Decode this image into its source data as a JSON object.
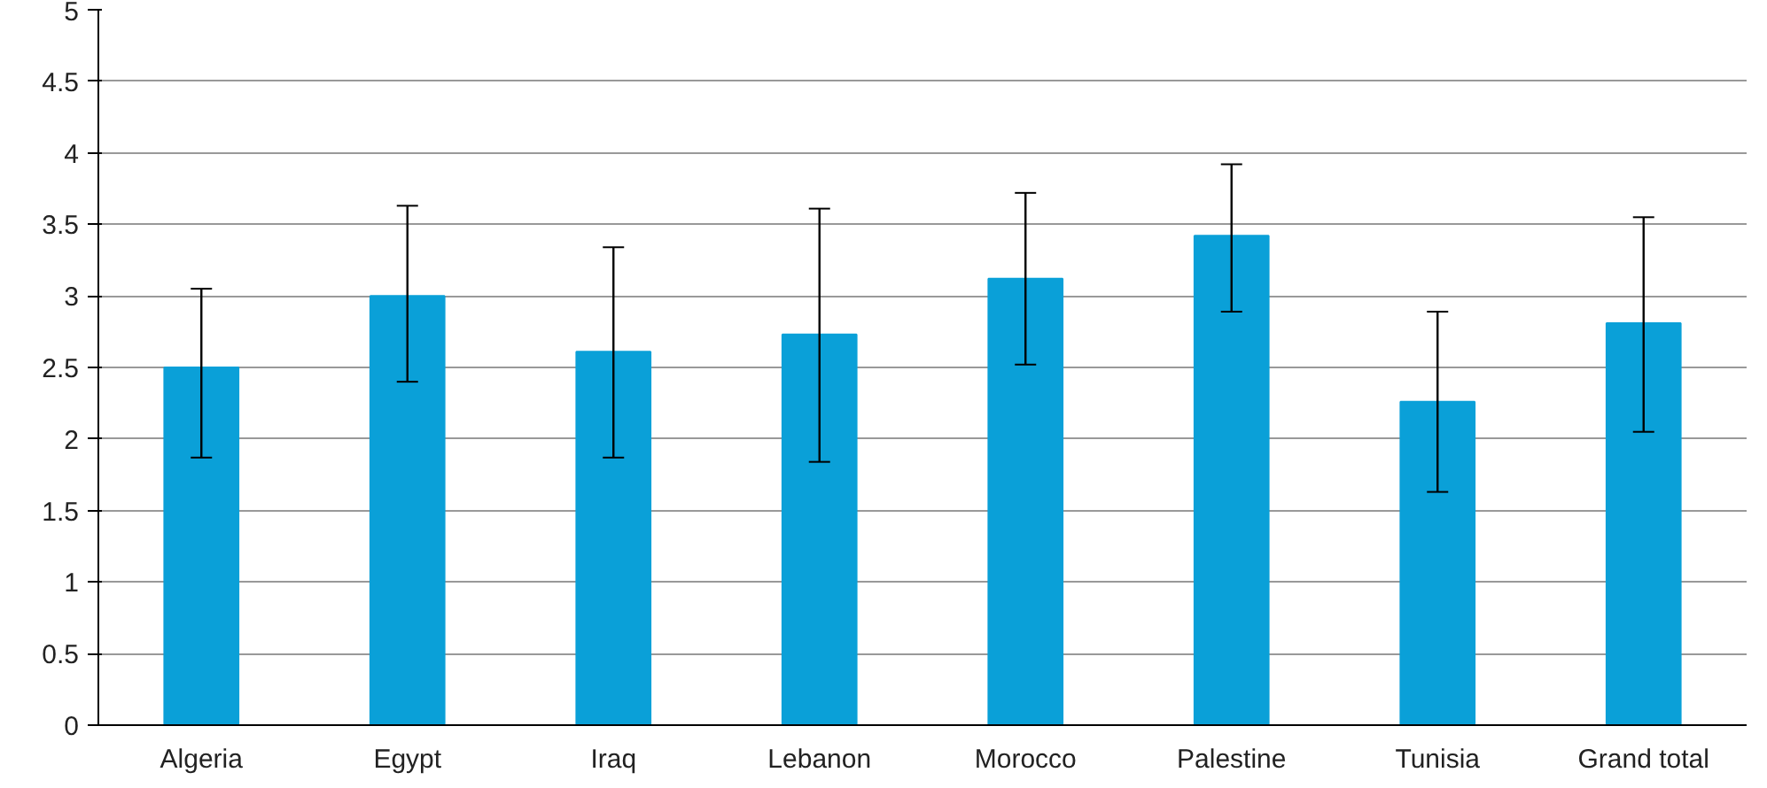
{
  "chart_data": {
    "type": "bar",
    "categories": [
      "Algeria",
      "Egypt",
      "Iraq",
      "Lebanon",
      "Morocco",
      "Palestine",
      "Tunisia",
      "Grand total"
    ],
    "values": [
      2.5,
      3.0,
      2.61,
      2.73,
      3.12,
      3.42,
      2.26,
      2.81
    ],
    "errors": [
      [
        1.87,
        3.05
      ],
      [
        2.4,
        3.63
      ],
      [
        1.87,
        3.34
      ],
      [
        1.84,
        3.61
      ],
      [
        2.52,
        3.72
      ],
      [
        2.89,
        3.92
      ],
      [
        1.63,
        2.89
      ],
      [
        2.05,
        3.55
      ]
    ],
    "color": "#0aa0d8",
    "ylim": [
      0,
      5
    ],
    "yticks": [
      0,
      0.5,
      1,
      1.5,
      2,
      2.5,
      3,
      3.5,
      4,
      4.5,
      5
    ],
    "grid": "y"
  }
}
